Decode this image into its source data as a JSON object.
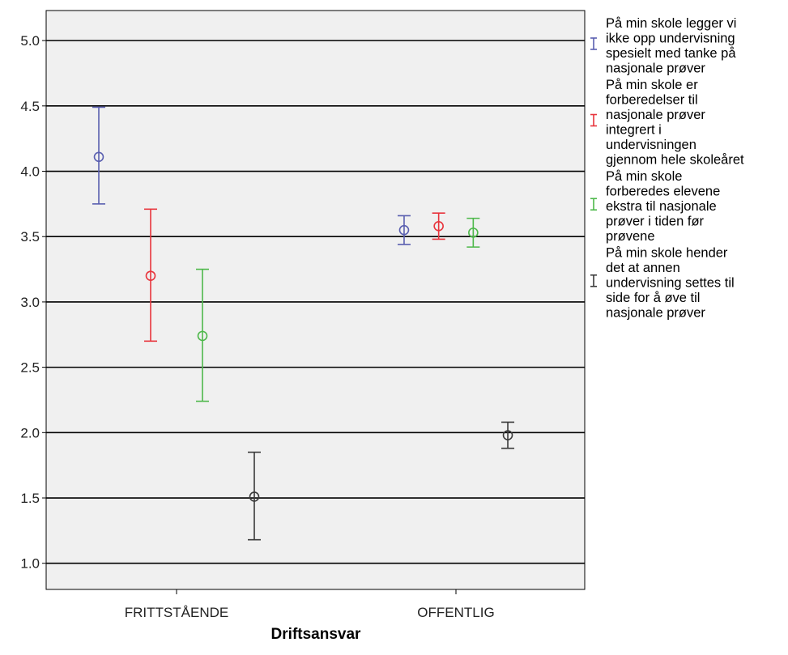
{
  "chart_data": {
    "type": "errorbar",
    "xlabel": "Driftsansvar",
    "ylabel": "",
    "ylim": [
      0.8,
      5.23
    ],
    "yticks": [
      "1.0",
      "1.5",
      "2.0",
      "2.5",
      "3.0",
      "3.5",
      "4.0",
      "4.5",
      "5.0"
    ],
    "ytick_values": [
      1.0,
      1.5,
      2.0,
      2.5,
      3.0,
      3.5,
      4.0,
      4.5,
      5.0
    ],
    "categories": [
      "FRITTSTÅENDE",
      "OFFENTLIG"
    ],
    "grid": true,
    "background": "#f0f0f0",
    "legend_position": "right",
    "series": [
      {
        "name": "På min skole legger vi ikke opp undervisning spesielt med tanke på nasjonale prøver",
        "legend_lines": [
          "På min skole legger vi",
          "ikke opp undervisning",
          "spesielt med tanke på",
          "nasjonale prøver"
        ],
        "color": "#5a5fb0",
        "mean": [
          4.11,
          3.55
        ],
        "low": [
          3.75,
          3.44
        ],
        "high": [
          4.49,
          3.66
        ]
      },
      {
        "name": "På min skole er forberedelser til nasjonale prøver integrert i undervisningen gjennom hele skoleåret",
        "legend_lines": [
          "På min skole er",
          "forberedelser til",
          "nasjonale prøver",
          "integrert i",
          "undervisningen",
          "gjennom hele skoleåret"
        ],
        "color": "#e8343c",
        "mean": [
          3.2,
          3.58
        ],
        "low": [
          2.7,
          3.48
        ],
        "high": [
          3.71,
          3.68
        ]
      },
      {
        "name": "På min skole forberedes elevene ekstra til nasjonale prøver i tiden før prøvene",
        "legend_lines": [
          "På min skole",
          "forberedes elevene",
          "ekstra til nasjonale",
          "prøver i tiden før",
          "prøvene"
        ],
        "color": "#4db84a",
        "mean": [
          2.74,
          3.53
        ],
        "low": [
          2.24,
          3.42
        ],
        "high": [
          3.25,
          3.64
        ]
      },
      {
        "name": "På min skole hender det at annen undervisning settes til side for å øve til nasjonale prøver",
        "legend_lines": [
          "På min skole hender",
          "det at annen",
          "undervisning settes til",
          "side for å øve til",
          "nasjonale prøver"
        ],
        "color": "#3a3a3a",
        "mean": [
          1.51,
          1.98
        ],
        "low": [
          1.18,
          1.88
        ],
        "high": [
          1.85,
          2.08
        ]
      }
    ]
  }
}
